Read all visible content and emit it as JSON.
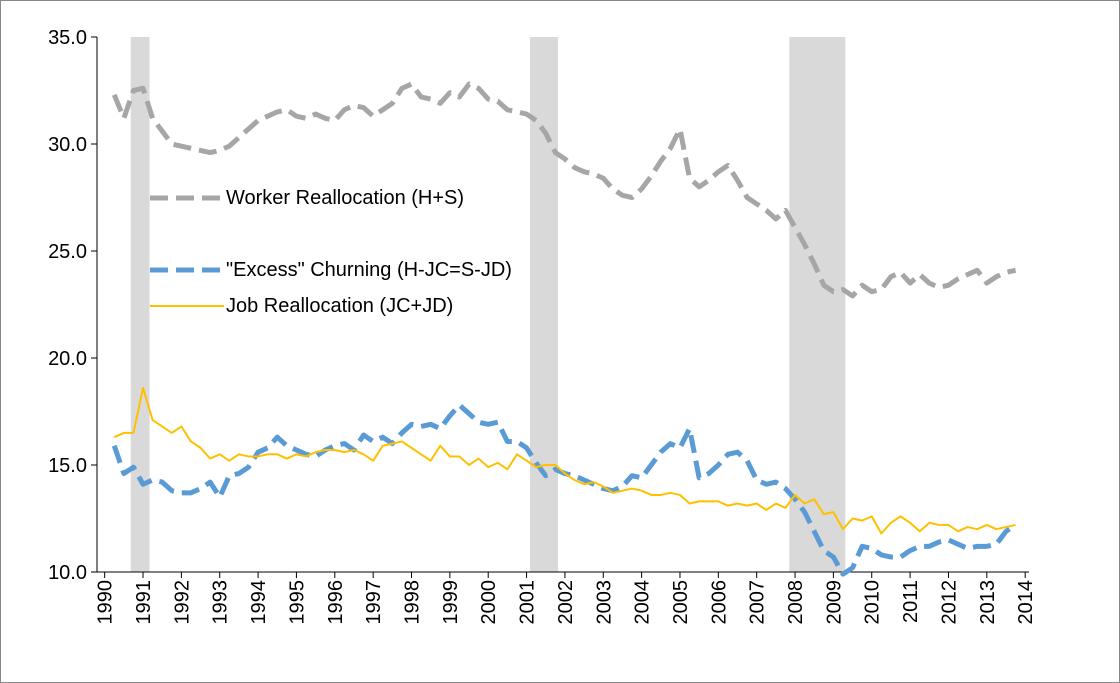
{
  "chart_data": {
    "type": "line",
    "x": [
      1990.25,
      1990.5,
      1990.75,
      1991,
      1991.25,
      1991.5,
      1991.75,
      1992,
      1992.25,
      1992.5,
      1992.75,
      1993,
      1993.25,
      1993.5,
      1993.75,
      1994,
      1994.25,
      1994.5,
      1994.75,
      1995,
      1995.25,
      1995.5,
      1995.75,
      1996,
      1996.25,
      1996.5,
      1996.75,
      1997,
      1997.25,
      1997.5,
      1997.75,
      1998,
      1998.25,
      1998.5,
      1998.75,
      1999,
      1999.25,
      1999.5,
      1999.75,
      2000,
      2000.25,
      2000.5,
      2000.75,
      2001,
      2001.25,
      2001.5,
      2001.75,
      2002,
      2002.25,
      2002.5,
      2002.75,
      2003,
      2003.25,
      2003.5,
      2003.75,
      2004,
      2004.25,
      2004.5,
      2004.75,
      2005,
      2005.25,
      2005.5,
      2005.75,
      2006,
      2006.25,
      2006.5,
      2006.75,
      2007,
      2007.25,
      2007.5,
      2007.75,
      2008,
      2008.25,
      2008.5,
      2008.75,
      2009,
      2009.25,
      2009.5,
      2009.75,
      2010,
      2010.25,
      2010.5,
      2010.75,
      2011,
      2011.25,
      2011.5,
      2011.75,
      2012,
      2012.25,
      2012.5,
      2012.75,
      2013,
      2013.25,
      2013.5,
      2013.75
    ],
    "series": [
      {
        "name": "Worker Reallocation (H+S)",
        "color": "#a6a6a6",
        "dashed": true,
        "values": [
          32.3,
          31.2,
          32.5,
          32.6,
          31.2,
          30.6,
          30.0,
          29.9,
          29.8,
          29.7,
          29.6,
          29.7,
          29.9,
          30.3,
          30.7,
          31.1,
          31.3,
          31.5,
          31.6,
          31.3,
          31.2,
          31.4,
          31.2,
          31.1,
          31.6,
          31.8,
          31.7,
          31.3,
          31.6,
          31.9,
          32.6,
          32.8,
          32.2,
          32.1,
          31.9,
          32.4,
          32.2,
          32.8,
          32.6,
          32.1,
          32.0,
          31.6,
          31.5,
          31.4,
          31.1,
          30.5,
          29.6,
          29.3,
          28.9,
          28.7,
          28.6,
          28.4,
          27.9,
          27.6,
          27.5,
          27.9,
          28.5,
          29.2,
          29.8,
          30.7,
          28.4,
          28.0,
          28.3,
          28.7,
          29.0,
          28.3,
          27.5,
          27.2,
          26.9,
          26.5,
          26.9,
          26.1,
          25.3,
          24.4,
          23.4,
          23.1,
          23.2,
          22.9,
          23.4,
          23.1,
          23.2,
          23.8,
          24.0,
          23.5,
          23.9,
          23.5,
          23.3,
          23.4,
          23.7,
          23.9,
          24.1,
          23.5,
          23.8,
          24.0,
          24.1
        ]
      },
      {
        "name": "\"Excess\" Churning (H-JC=S-JD)",
        "color": "#5b9bd5",
        "dashed": true,
        "values": [
          15.9,
          14.6,
          14.9,
          14.1,
          14.3,
          14.2,
          13.8,
          13.7,
          13.7,
          13.9,
          14.2,
          13.5,
          14.5,
          14.6,
          14.9,
          15.6,
          15.8,
          16.3,
          15.9,
          15.7,
          15.5,
          15.4,
          15.7,
          15.9,
          16.0,
          15.7,
          16.4,
          16.1,
          16.3,
          16.0,
          16.5,
          16.9,
          16.8,
          16.9,
          16.7,
          17.3,
          17.8,
          17.4,
          17.0,
          16.9,
          17.0,
          16.1,
          16.1,
          15.8,
          15.1,
          14.5,
          14.8,
          14.6,
          14.5,
          14.3,
          14.1,
          13.9,
          13.8,
          14.0,
          14.5,
          14.4,
          15.0,
          15.6,
          16.0,
          15.8,
          16.7,
          14.4,
          14.6,
          15.0,
          15.5,
          15.6,
          15.2,
          14.3,
          14.1,
          14.2,
          13.9,
          13.4,
          12.8,
          11.9,
          11.0,
          10.7,
          9.9,
          10.2,
          11.2,
          11.1,
          10.8,
          10.7,
          10.7,
          11.0,
          11.2,
          11.2,
          11.4,
          11.5,
          11.3,
          11.1,
          11.2,
          11.2,
          11.3,
          11.9,
          12.2
        ]
      },
      {
        "name": "Job Reallocation (JC+JD)",
        "color": "#ffc000",
        "dashed": false,
        "values": [
          16.3,
          16.5,
          16.5,
          18.6,
          17.1,
          16.8,
          16.5,
          16.8,
          16.1,
          15.8,
          15.3,
          15.5,
          15.2,
          15.5,
          15.4,
          15.4,
          15.5,
          15.5,
          15.3,
          15.5,
          15.4,
          15.6,
          15.7,
          15.7,
          15.6,
          15.7,
          15.5,
          15.2,
          15.9,
          16.0,
          16.1,
          15.8,
          15.5,
          15.2,
          15.9,
          15.4,
          15.4,
          15.0,
          15.3,
          14.9,
          15.1,
          14.8,
          15.5,
          15.2,
          14.9,
          15.0,
          15.0,
          14.6,
          14.3,
          14.1,
          14.2,
          14.0,
          13.7,
          13.8,
          13.9,
          13.8,
          13.6,
          13.6,
          13.7,
          13.6,
          13.2,
          13.3,
          13.3,
          13.3,
          13.1,
          13.2,
          13.1,
          13.2,
          12.9,
          13.2,
          13.0,
          13.6,
          13.2,
          13.4,
          12.7,
          12.8,
          12.0,
          12.5,
          12.4,
          12.6,
          11.8,
          12.3,
          12.6,
          12.3,
          11.9,
          12.3,
          12.2,
          12.2,
          11.9,
          12.1,
          12.0,
          12.2,
          12.0,
          12.1,
          12.2
        ]
      }
    ],
    "shaded_regions": [
      [
        1990.68,
        1991.17
      ],
      [
        2001.09,
        2001.82
      ],
      [
        2007.85,
        2009.31
      ]
    ],
    "shade_color": "#d9d9d9",
    "xlim": [
      1989.8,
      2014.1
    ],
    "xticks": [
      1990,
      1991,
      1992,
      1993,
      1994,
      1995,
      1996,
      1997,
      1998,
      1999,
      2000,
      2001,
      2002,
      2003,
      2004,
      2005,
      2006,
      2007,
      2008,
      2009,
      2010,
      2011,
      2012,
      2013,
      2014
    ],
    "ylim": [
      10,
      35
    ],
    "yticks": [
      {
        "value": 10,
        "label": "10.0"
      },
      {
        "value": 15,
        "label": "15.0"
      },
      {
        "value": 20,
        "label": "20.0"
      },
      {
        "value": 25,
        "label": "25.0"
      },
      {
        "value": 30,
        "label": "30.0"
      },
      {
        "value": 35,
        "label": "35.0"
      }
    ],
    "grid": false
  }
}
